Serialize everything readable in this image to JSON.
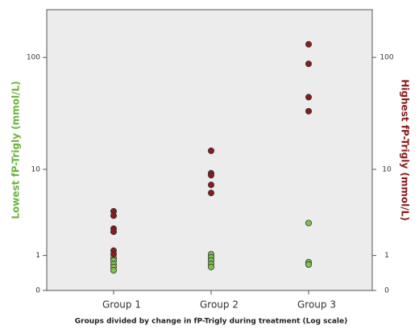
{
  "chart_data": {
    "type": "scatter",
    "xlabel": "Groups divided by change in fP-Trigly during treatment (Log scale)",
    "ylabel": "Lowest fP-Trigly (mmol/L)",
    "y2label": "Highest fP-Trigly (mmol/L)",
    "categories": [
      "Group 1",
      "Group 2",
      "Group 3"
    ],
    "yscale": "log",
    "ylim": [
      0,
      259
    ],
    "yticks": [
      0,
      1,
      10,
      100
    ],
    "y2lim": [
      0,
      259
    ],
    "y2ticks": [
      0,
      1,
      10,
      100
    ],
    "series": [
      {
        "name": "Lowest fP-Trigly (mmol/L)",
        "color": "#7dc24b",
        "values": [
          [
            0.9,
            0.81,
            0.69,
            0.59,
            0.49
          ],
          [
            1.05,
            0.93,
            0.81,
            0.69,
            0.59
          ],
          [
            2.8,
            0.75,
            0.67
          ]
        ]
      },
      {
        "name": "Highest fP-Trigly (mmol/L)",
        "color": "#8b1a1a",
        "axis": "y2",
        "values": [
          [
            3.8,
            3.4,
            2.4,
            2.2,
            1.2,
            1.05
          ],
          [
            14.9,
            9.2,
            8.8,
            7.1,
            5.9
          ],
          [
            130,
            88,
            45,
            33.8
          ]
        ]
      }
    ]
  }
}
